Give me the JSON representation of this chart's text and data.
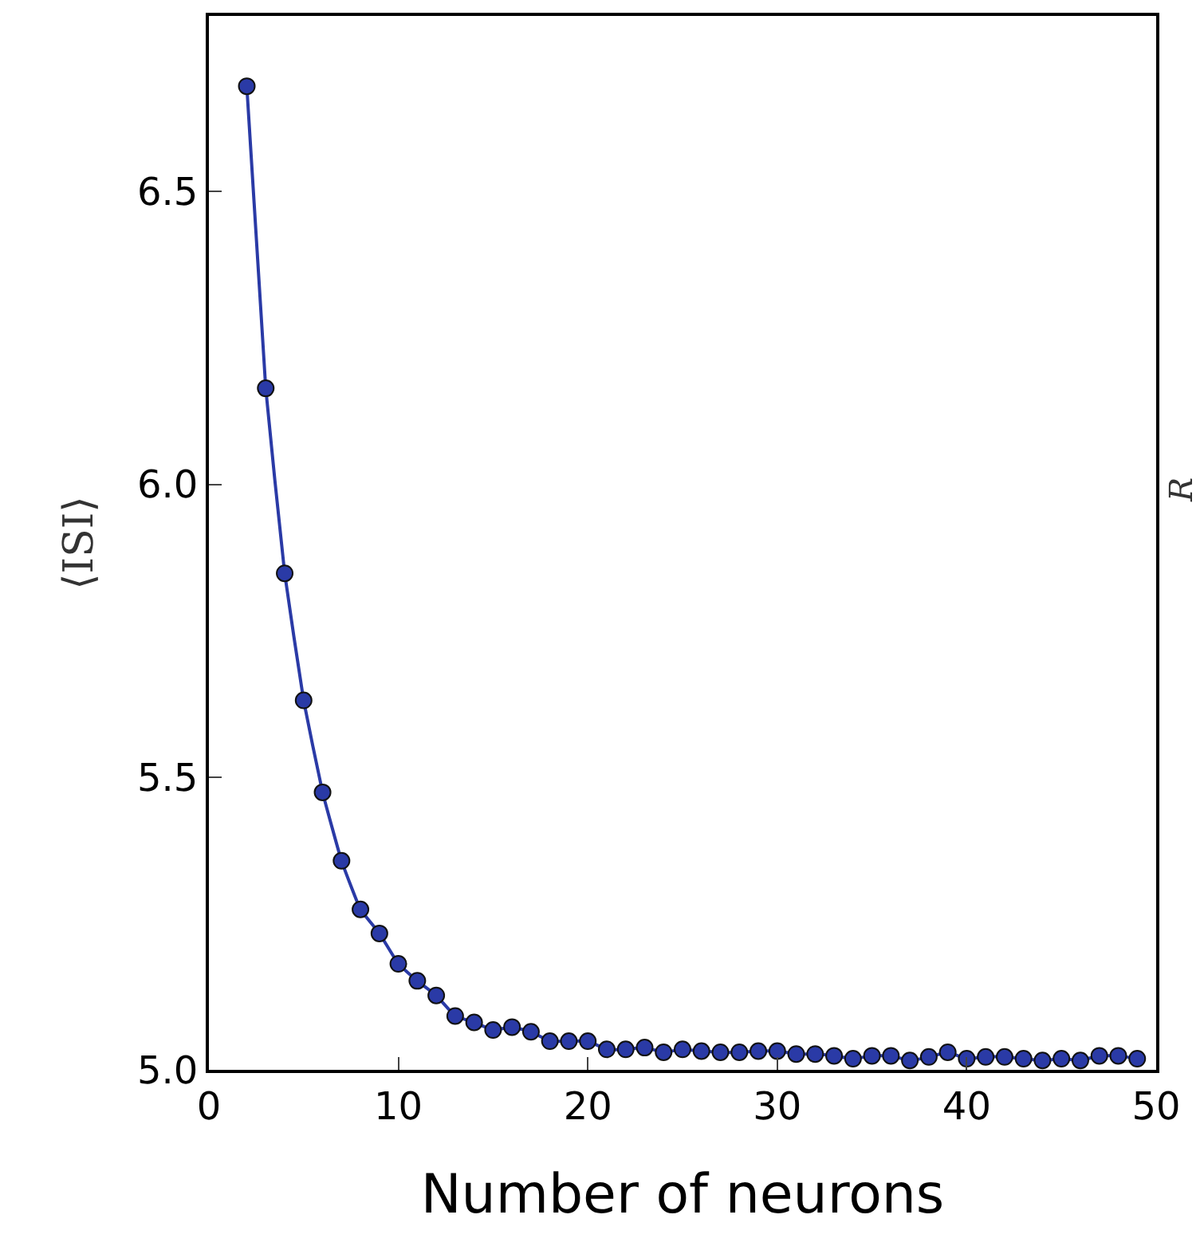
{
  "chart_data": {
    "type": "line",
    "xlabel": "Number of neurons",
    "ylabel": "⟨ISI⟩",
    "y2label": "R",
    "x": [
      2,
      3,
      4,
      5,
      6,
      7,
      8,
      9,
      10,
      11,
      12,
      13,
      14,
      15,
      16,
      17,
      18,
      19,
      20,
      21,
      22,
      23,
      24,
      25,
      26,
      27,
      28,
      29,
      30,
      31,
      32,
      33,
      34,
      35,
      36,
      37,
      38,
      39,
      40,
      41,
      42,
      43,
      44,
      45,
      46,
      47,
      48,
      49
    ],
    "series": [
      {
        "color": "#2a3aa6",
        "values": [
          6.68,
          6.164,
          5.848,
          5.631,
          5.474,
          5.357,
          5.274,
          5.233,
          5.181,
          5.152,
          5.127,
          5.092,
          5.081,
          5.068,
          5.073,
          5.065,
          5.049,
          5.049,
          5.049,
          5.035,
          5.035,
          5.038,
          5.03,
          5.035,
          5.032,
          5.03,
          5.03,
          5.032,
          5.032,
          5.027,
          5.027,
          5.024,
          5.019,
          5.024,
          5.024,
          5.016,
          5.022,
          5.03,
          5.019,
          5.022,
          5.022,
          5.019,
          5.016,
          5.019,
          5.016,
          5.024,
          5.024,
          5.019
        ]
      }
    ],
    "xlim": [
      0,
      50
    ],
    "xticks": [
      0,
      10,
      20,
      30,
      40,
      50
    ],
    "ylim": [
      5.0,
      6.8
    ],
    "yticks": [
      {
        "value": 5.0,
        "label": "5.0"
      },
      5.5,
      {
        "value": 6.0,
        "label": "6.0"
      },
      6.5
    ],
    "marker": "circle",
    "line_style": "solid"
  }
}
